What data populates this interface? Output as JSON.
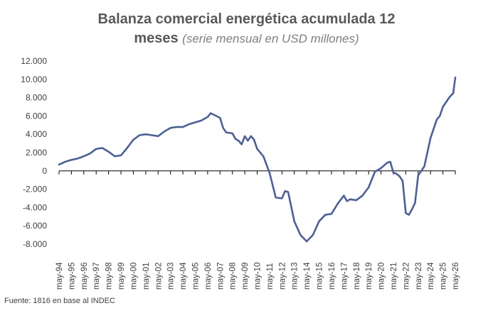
{
  "title": {
    "line1": "Balanza comercial energética acumulada 12",
    "line2_main": "meses",
    "line2_sub": "(serie mensual en USD millones)"
  },
  "source": "Fuente: 1816 en base al INDEC",
  "colors": {
    "line": "#4a5f9e",
    "axis": "#000000",
    "text": "#404040"
  },
  "chart_data": {
    "type": "line",
    "ylim": [
      -8000,
      12000
    ],
    "y_ticks": [
      12000,
      10000,
      8000,
      6000,
      4000,
      2000,
      0,
      -2000,
      -4000,
      -6000,
      -8000
    ],
    "y_tick_labels": [
      "12.000",
      "10.000",
      "8.000",
      "6.000",
      "4.000",
      "2.000",
      "0",
      "-2.000",
      "-4.000",
      "-6.000",
      "-8.000"
    ],
    "x_tick_labels": [
      "may-94",
      "may-95",
      "may-96",
      "may-97",
      "may-98",
      "may-99",
      "may-00",
      "may-01",
      "may-02",
      "may-03",
      "may-04",
      "may-05",
      "may-06",
      "may-07",
      "may-08",
      "may-09",
      "may-10",
      "may-11",
      "may-12",
      "may-13",
      "may-14",
      "may-15",
      "may-16",
      "may-17",
      "may-18",
      "may-19",
      "may-20",
      "may-21",
      "may-22",
      "may-23",
      "may-24",
      "may-25",
      "may-26"
    ],
    "grid": false,
    "legend": "none",
    "series": [
      {
        "points": [
          [
            "may-94",
            700
          ],
          [
            "nov-94",
            1000
          ],
          [
            "may-95",
            1200
          ],
          [
            "nov-95",
            1350
          ],
          [
            "may-96",
            1600
          ],
          [
            "nov-96",
            1900
          ],
          [
            "may-97",
            2400
          ],
          [
            "nov-97",
            2500
          ],
          [
            "may-98",
            2100
          ],
          [
            "nov-98",
            1600
          ],
          [
            "may-99",
            1700
          ],
          [
            "nov-99",
            2500
          ],
          [
            "may-00",
            3400
          ],
          [
            "nov-00",
            3900
          ],
          [
            "may-01",
            4000
          ],
          [
            "nov-01",
            3900
          ],
          [
            "may-02",
            3800
          ],
          [
            "nov-02",
            4300
          ],
          [
            "may-03",
            4700
          ],
          [
            "nov-03",
            4800
          ],
          [
            "may-04",
            4800
          ],
          [
            "nov-04",
            5100
          ],
          [
            "may-05",
            5300
          ],
          [
            "nov-05",
            5500
          ],
          [
            "may-06",
            5900
          ],
          [
            "aug-06",
            6300
          ],
          [
            "may-07",
            5800
          ],
          [
            "aug-07",
            4700
          ],
          [
            "nov-07",
            4200
          ],
          [
            "may-08",
            4100
          ],
          [
            "aug-08",
            3500
          ],
          [
            "nov-08",
            3300
          ],
          [
            "feb-09",
            2900
          ],
          [
            "may-09",
            3800
          ],
          [
            "aug-09",
            3300
          ],
          [
            "nov-09",
            3800
          ],
          [
            "feb-10",
            3400
          ],
          [
            "may-10",
            2400
          ],
          [
            "nov-10",
            1600
          ],
          [
            "may-11",
            -200
          ],
          [
            "nov-11",
            -2900
          ],
          [
            "may-12",
            -3000
          ],
          [
            "aug-12",
            -2200
          ],
          [
            "nov-12",
            -2300
          ],
          [
            "feb-13",
            -3900
          ],
          [
            "may-13",
            -5500
          ],
          [
            "nov-13",
            -7000
          ],
          [
            "may-14",
            -7700
          ],
          [
            "nov-14",
            -7000
          ],
          [
            "may-15",
            -5500
          ],
          [
            "nov-15",
            -4800
          ],
          [
            "may-16",
            -4700
          ],
          [
            "nov-16",
            -3600
          ],
          [
            "may-17",
            -2700
          ],
          [
            "aug-17",
            -3300
          ],
          [
            "nov-17",
            -3100
          ],
          [
            "may-18",
            -3200
          ],
          [
            "nov-18",
            -2700
          ],
          [
            "may-19",
            -1800
          ],
          [
            "nov-19",
            -100
          ],
          [
            "may-20",
            300
          ],
          [
            "nov-20",
            900
          ],
          [
            "feb-21",
            1000
          ],
          [
            "may-21",
            -200
          ],
          [
            "aug-21",
            -300
          ],
          [
            "nov-21",
            -600
          ],
          [
            "feb-22",
            -1100
          ],
          [
            "may-22",
            -4600
          ],
          [
            "aug-22",
            -4800
          ],
          [
            "nov-22",
            -4200
          ],
          [
            "feb-23",
            -3500
          ],
          [
            "may-23",
            -500
          ],
          [
            "nov-23",
            500
          ],
          [
            "may-24",
            3600
          ],
          [
            "nov-24",
            5600
          ],
          [
            "feb-25",
            6000
          ],
          [
            "may-25",
            7000
          ],
          [
            "nov-25",
            8000
          ],
          [
            "mar-26",
            8500
          ],
          [
            "may-26",
            10200
          ]
        ]
      }
    ]
  }
}
